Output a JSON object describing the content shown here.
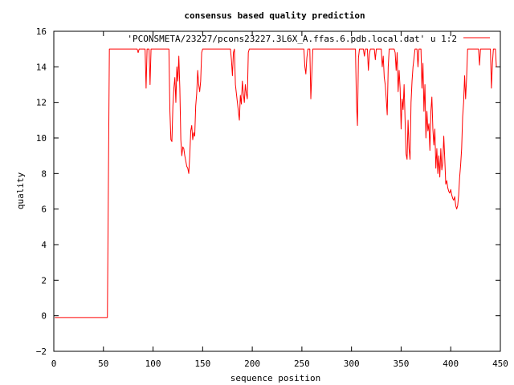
{
  "chart_data": {
    "type": "line",
    "title": "consensus based quality prediction",
    "xlabel": "sequence position",
    "ylabel": "quality",
    "xlim": [
      0,
      450
    ],
    "ylim": [
      -2,
      16
    ],
    "xticks": [
      0,
      50,
      100,
      150,
      200,
      250,
      300,
      350,
      400,
      450
    ],
    "yticks": [
      -2,
      0,
      2,
      4,
      6,
      8,
      10,
      12,
      14,
      16
    ],
    "grid": false,
    "legend_position": "top-right",
    "series": [
      {
        "name": "'PCONSMETA/23227/pcons23227.3L6X_A.ffas.6.pdb.local.dat' u 1:2",
        "color": "#ff0000",
        "points": [
          [
            1,
            -0.1
          ],
          [
            54,
            -0.1
          ],
          [
            55,
            7.5
          ],
          [
            56,
            15
          ],
          [
            84,
            15
          ],
          [
            85,
            14.8
          ],
          [
            86,
            15
          ],
          [
            92,
            15
          ],
          [
            93,
            12.8
          ],
          [
            94,
            15
          ],
          [
            96,
            15
          ],
          [
            97,
            13.0
          ],
          [
            98,
            15
          ],
          [
            116,
            15
          ],
          [
            117,
            11.5
          ],
          [
            118,
            9.9
          ],
          [
            119,
            9.8
          ],
          [
            120,
            11.8
          ],
          [
            121,
            12.8
          ],
          [
            122,
            13.4
          ],
          [
            123,
            12.0
          ],
          [
            124,
            14.0
          ],
          [
            125,
            13.2
          ],
          [
            126,
            14.6
          ],
          [
            127,
            12.8
          ],
          [
            128,
            9.9
          ],
          [
            129,
            9.0
          ],
          [
            130,
            9.5
          ],
          [
            131,
            9.4
          ],
          [
            132,
            9.0
          ],
          [
            133,
            8.7
          ],
          [
            134,
            8.4
          ],
          [
            135,
            8.3
          ],
          [
            136,
            8.0
          ],
          [
            137,
            9.0
          ],
          [
            138,
            10.4
          ],
          [
            139,
            10.7
          ],
          [
            140,
            9.9
          ],
          [
            141,
            10.3
          ],
          [
            142,
            10.1
          ],
          [
            143,
            11.8
          ],
          [
            144,
            12.5
          ],
          [
            145,
            13.8
          ],
          [
            146,
            13.0
          ],
          [
            147,
            12.6
          ],
          [
            148,
            13.2
          ],
          [
            149,
            14.8
          ],
          [
            150,
            15
          ],
          [
            178,
            15
          ],
          [
            179,
            14.4
          ],
          [
            180,
            13.5
          ],
          [
            181,
            14.8
          ],
          [
            182,
            15
          ],
          [
            183,
            13.0
          ],
          [
            184,
            12.5
          ],
          [
            185,
            12.0
          ],
          [
            186,
            11.5
          ],
          [
            187,
            11.0
          ],
          [
            188,
            12.4
          ],
          [
            189,
            11.9
          ],
          [
            190,
            13.2
          ],
          [
            191,
            12.5
          ],
          [
            192,
            12.0
          ],
          [
            193,
            13.0
          ],
          [
            194,
            12.5
          ],
          [
            195,
            12.2
          ],
          [
            196,
            14.8
          ],
          [
            197,
            15
          ],
          [
            252,
            15
          ],
          [
            253,
            14.0
          ],
          [
            254,
            13.6
          ],
          [
            255,
            14.5
          ],
          [
            256,
            15
          ],
          [
            258,
            15
          ],
          [
            259,
            12.2
          ],
          [
            260,
            13.6
          ],
          [
            261,
            15
          ],
          [
            304,
            15
          ],
          [
            305,
            12.0
          ],
          [
            306,
            10.7
          ],
          [
            307,
            14.5
          ],
          [
            308,
            15
          ],
          [
            312,
            15
          ],
          [
            313,
            14.6
          ],
          [
            314,
            15
          ],
          [
            316,
            15
          ],
          [
            317,
            13.8
          ],
          [
            318,
            14.7
          ],
          [
            319,
            15
          ],
          [
            323,
            15
          ],
          [
            324,
            14.4
          ],
          [
            325,
            15
          ],
          [
            330,
            15
          ],
          [
            331,
            14.0
          ],
          [
            332,
            14.6
          ],
          [
            333,
            13.4
          ],
          [
            334,
            13.0
          ],
          [
            335,
            12.2
          ],
          [
            336,
            11.3
          ],
          [
            337,
            14.0
          ],
          [
            338,
            15
          ],
          [
            343,
            15
          ],
          [
            344,
            14.8
          ],
          [
            345,
            13.8
          ],
          [
            346,
            14.8
          ],
          [
            347,
            12.6
          ],
          [
            348,
            13.8
          ],
          [
            349,
            12.8
          ],
          [
            350,
            10.5
          ],
          [
            351,
            12.2
          ],
          [
            352,
            11.6
          ],
          [
            353,
            13.0
          ],
          [
            354,
            11.0
          ],
          [
            355,
            9.1
          ],
          [
            356,
            8.8
          ],
          [
            357,
            11.0
          ],
          [
            358,
            9.4
          ],
          [
            359,
            8.8
          ],
          [
            360,
            12.0
          ],
          [
            361,
            13.2
          ],
          [
            362,
            14.0
          ],
          [
            363,
            14.5
          ],
          [
            364,
            15
          ],
          [
            366,
            15
          ],
          [
            367,
            14.0
          ],
          [
            368,
            15
          ],
          [
            370,
            15
          ],
          [
            371,
            12.8
          ],
          [
            372,
            14.2
          ],
          [
            373,
            11.5
          ],
          [
            374,
            13.0
          ],
          [
            375,
            10.0
          ],
          [
            376,
            11.5
          ],
          [
            377,
            10.4
          ],
          [
            378,
            10.8
          ],
          [
            379,
            9.3
          ],
          [
            380,
            11.5
          ],
          [
            381,
            12.3
          ],
          [
            382,
            10.5
          ],
          [
            383,
            9.6
          ],
          [
            384,
            10.5
          ],
          [
            385,
            8.3
          ],
          [
            386,
            9.4
          ],
          [
            387,
            8.0
          ],
          [
            388,
            9.0
          ],
          [
            389,
            7.8
          ],
          [
            390,
            9.4
          ],
          [
            391,
            8.2
          ],
          [
            392,
            8.6
          ],
          [
            393,
            10.1
          ],
          [
            394,
            8.8
          ],
          [
            395,
            7.4
          ],
          [
            396,
            7.6
          ],
          [
            397,
            7.2
          ],
          [
            398,
            7.0
          ],
          [
            399,
            6.9
          ],
          [
            400,
            7.1
          ],
          [
            401,
            6.8
          ],
          [
            402,
            6.6
          ],
          [
            403,
            6.5
          ],
          [
            404,
            6.7
          ],
          [
            405,
            6.2
          ],
          [
            406,
            6.0
          ],
          [
            407,
            6.2
          ],
          [
            408,
            6.8
          ],
          [
            409,
            7.8
          ],
          [
            410,
            8.5
          ],
          [
            411,
            9.4
          ],
          [
            412,
            11.2
          ],
          [
            413,
            12.0
          ],
          [
            414,
            13.5
          ],
          [
            415,
            12.2
          ],
          [
            416,
            13.4
          ],
          [
            417,
            15
          ],
          [
            428,
            15
          ],
          [
            429,
            14.1
          ],
          [
            430,
            15
          ],
          [
            440,
            15
          ],
          [
            441,
            12.8
          ],
          [
            442,
            14.2
          ],
          [
            443,
            15
          ],
          [
            445,
            15
          ],
          [
            446,
            14.0
          ]
        ]
      }
    ]
  }
}
